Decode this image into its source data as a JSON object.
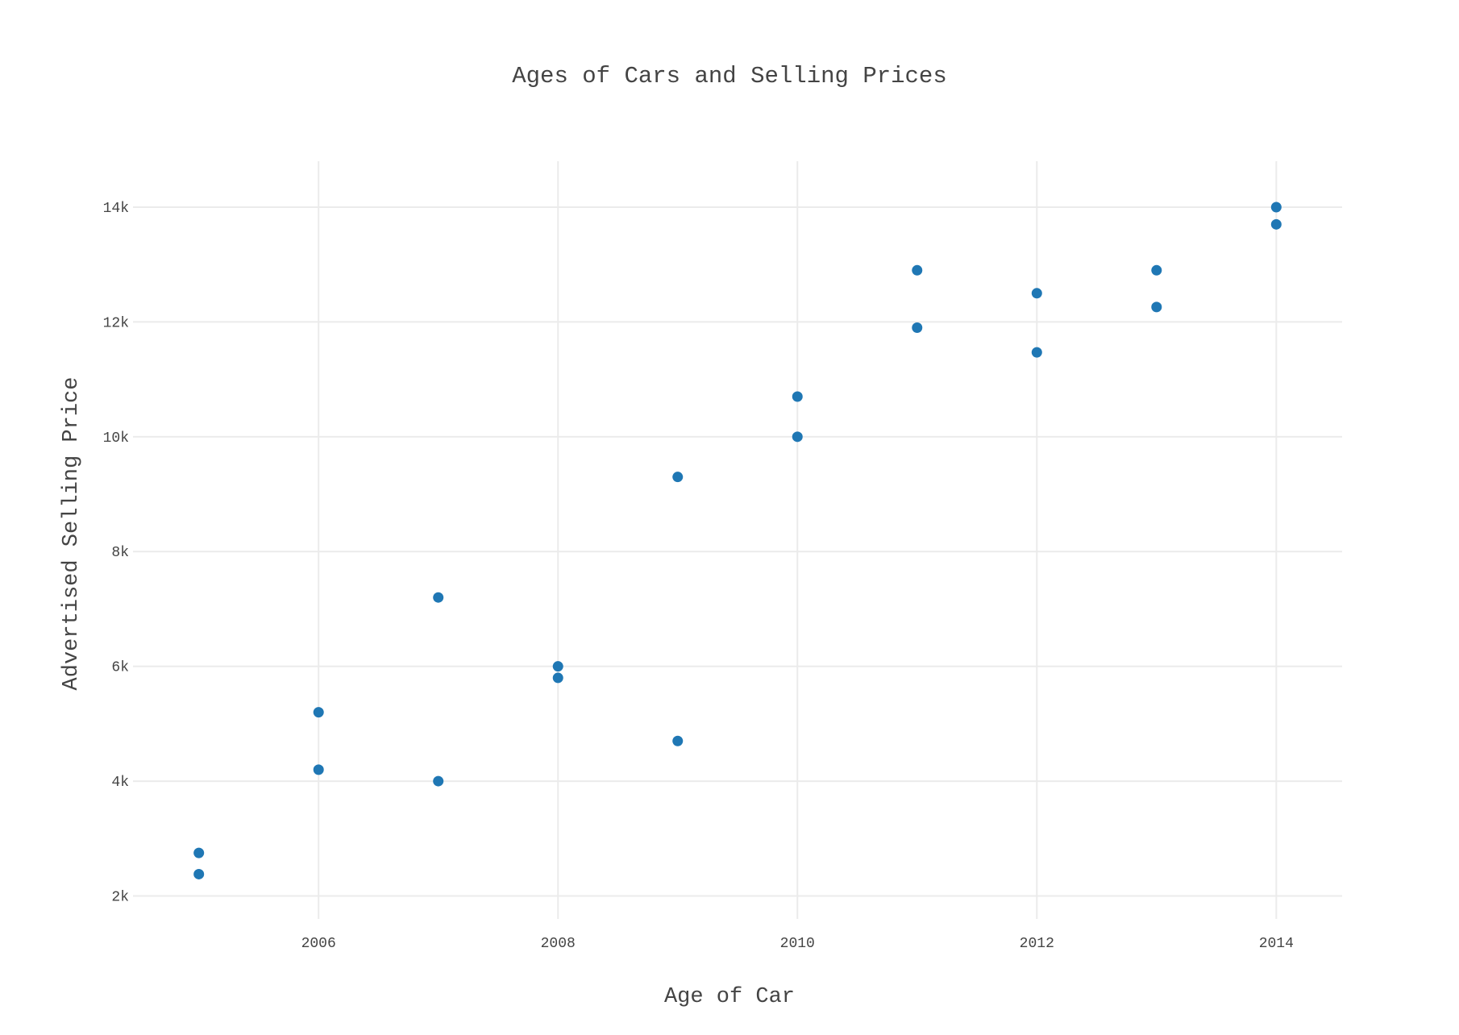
{
  "chart_data": {
    "type": "scatter",
    "title": "Ages of Cars and Selling Prices",
    "xlabel": "Age of Car",
    "ylabel": "Advertised Selling Price",
    "xlim": [
      2004.45,
      2014.55
    ],
    "ylim": [
      1600,
      14800
    ],
    "x_ticks": [
      2006,
      2008,
      2010,
      2012,
      2014
    ],
    "x_tick_labels": [
      "2006",
      "2008",
      "2010",
      "2012",
      "2014"
    ],
    "y_ticks": [
      2000,
      4000,
      6000,
      8000,
      10000,
      12000,
      14000
    ],
    "y_tick_labels": [
      "2k",
      "4k",
      "6k",
      "8k",
      "10k",
      "12k",
      "14k"
    ],
    "grid": true,
    "marker_color": "#1f77b4",
    "grid_color": "#ebebeb",
    "text_color": "#444444",
    "x": [
      2005,
      2005,
      2006,
      2006,
      2007,
      2007,
      2008,
      2008,
      2009,
      2009,
      2010,
      2010,
      2011,
      2011,
      2012,
      2012,
      2013,
      2013,
      2014,
      2014
    ],
    "y": [
      2750,
      2380,
      5200,
      4200,
      7200,
      4000,
      6000,
      5800,
      9300,
      4700,
      10700,
      10000,
      12900,
      11900,
      12500,
      11470,
      12900,
      12260,
      14000,
      13700
    ]
  }
}
